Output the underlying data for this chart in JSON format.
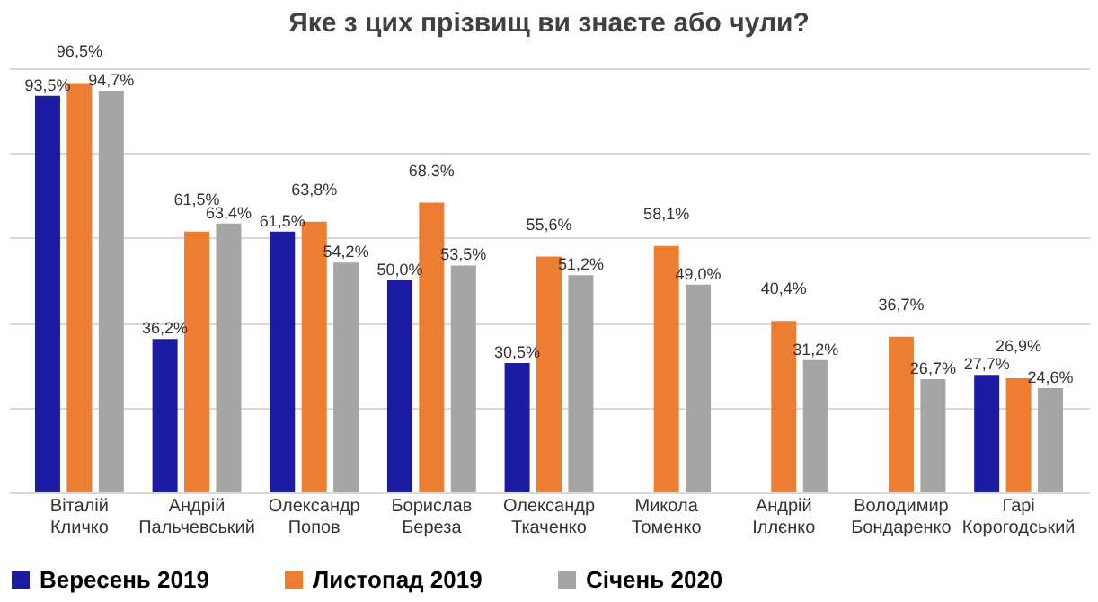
{
  "chart_data": {
    "type": "bar",
    "title": "Яке з цих прізвищ  ви знаєте або чули?",
    "categories": [
      "Віталій Кличко",
      "Андрій Пальчевський",
      "Олександр Попов",
      "Борислав Береза",
      "Олександр Ткаченко",
      "Микола Томенко",
      "Андрій Іллєнко",
      "Володимир Бондаренко",
      "Гарі Корогодський"
    ],
    "series": [
      {
        "name": "Вересень 2019",
        "color": "#1c1ca3",
        "values": [
          93.5,
          36.2,
          61.5,
          50.0,
          30.5,
          null,
          null,
          null,
          27.7
        ],
        "value_labels": [
          "93,5%",
          "36,2%",
          "61,5%",
          "50,0%",
          "30,5%",
          null,
          null,
          null,
          "27,7%"
        ]
      },
      {
        "name": "Листопад 2019",
        "color": "#ed7d31",
        "values": [
          96.5,
          61.5,
          63.8,
          68.3,
          55.6,
          58.1,
          40.4,
          36.7,
          26.9
        ],
        "value_labels": [
          "96,5%",
          "61,5%",
          "63,8%",
          "68,3%",
          "55,6%",
          "58,1%",
          "40,4%",
          "36,7%",
          "26,9%"
        ]
      },
      {
        "name": "Січень 2020",
        "color": "#a5a5a5",
        "values": [
          94.7,
          63.4,
          54.2,
          53.5,
          51.2,
          49.0,
          31.2,
          26.7,
          24.6
        ],
        "value_labels": [
          "94,7%",
          "63,4%",
          "54,2%",
          "53,5%",
          "51,2%",
          "49,0%",
          "31,2%",
          "26,7%",
          "24,6%"
        ]
      }
    ],
    "grid": "y",
    "tick_labels": "x",
    "legend": "bottom"
  }
}
